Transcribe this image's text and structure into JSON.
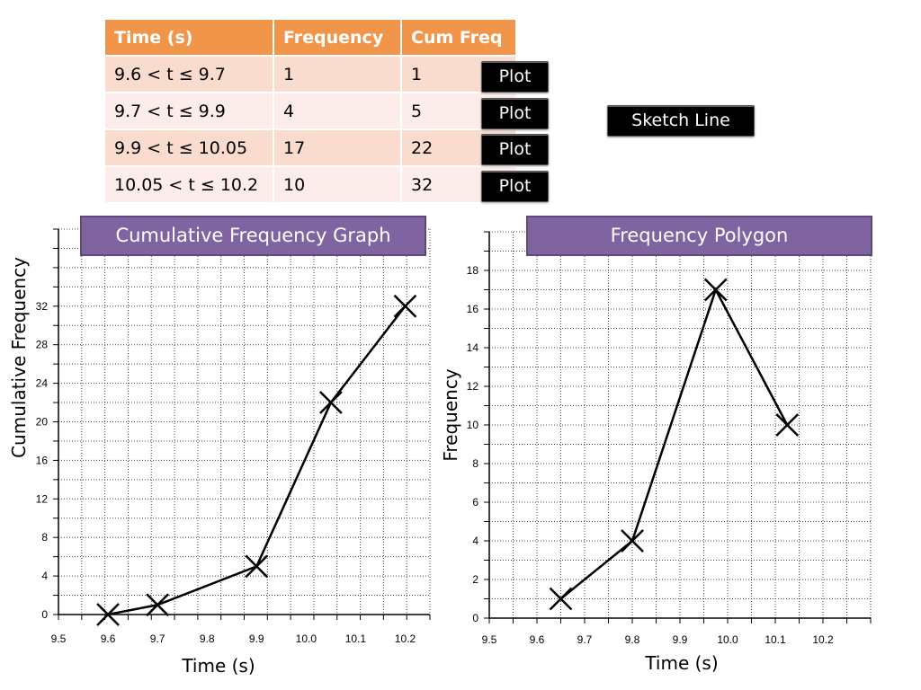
{
  "table": {
    "headers": [
      "Time (s)",
      "Frequency",
      "Cum Freq"
    ],
    "rows": [
      {
        "interval": "9.6 < t ≤ 9.7",
        "frequency": "1",
        "cum_freq": "1"
      },
      {
        "interval": "9.7 < t ≤ 9.9",
        "frequency": "4",
        "cum_freq": "5"
      },
      {
        "interval": "9.9 < t ≤ 10.05",
        "frequency": "17",
        "cum_freq": "22"
      },
      {
        "interval": "10.05 < t ≤ 10.2",
        "frequency": "10",
        "cum_freq": "32"
      }
    ],
    "header_color": "#f0954a",
    "row_colors": [
      "#fadccf",
      "#fcecea"
    ]
  },
  "buttons": {
    "plot_label": "Plot",
    "sketch_line_label": "Sketch Line"
  },
  "chart_data": [
    {
      "type": "line",
      "title": "Cumulative Frequency Graph",
      "xlabel": "Time (s)",
      "ylabel": "Cumulative Frequency",
      "x": [
        9.6,
        9.7,
        9.9,
        10.05,
        10.2
      ],
      "y": [
        0,
        1,
        5,
        22,
        32
      ],
      "xlim": [
        9.5,
        10.25
      ],
      "ylim": [
        0,
        40
      ],
      "x_ticks": [
        "9.5",
        "9.6",
        "9.7",
        "9.8",
        "9.9",
        "10.0",
        "10.1",
        "10.2"
      ],
      "y_ticks": [
        "0",
        "4",
        "8",
        "12",
        "16",
        "20",
        "24",
        "28",
        "32"
      ],
      "grid": true,
      "marker": "x",
      "title_color": "#8064a2"
    },
    {
      "type": "line",
      "title": "Frequency Polygon",
      "xlabel": "Time (s)",
      "ylabel": "Frequency",
      "x": [
        9.65,
        9.8,
        9.975,
        10.125
      ],
      "y": [
        1,
        4,
        17,
        10
      ],
      "xlim": [
        9.5,
        10.3
      ],
      "ylim": [
        0,
        20
      ],
      "x_ticks": [
        "9.5",
        "9.6",
        "9.7",
        "9.8",
        "9.9",
        "10.0",
        "10.1",
        "10.2"
      ],
      "y_ticks": [
        "0",
        "2",
        "4",
        "6",
        "8",
        "10",
        "12",
        "14",
        "16",
        "18"
      ],
      "grid": true,
      "marker": "x",
      "title_color": "#8064a2"
    }
  ]
}
